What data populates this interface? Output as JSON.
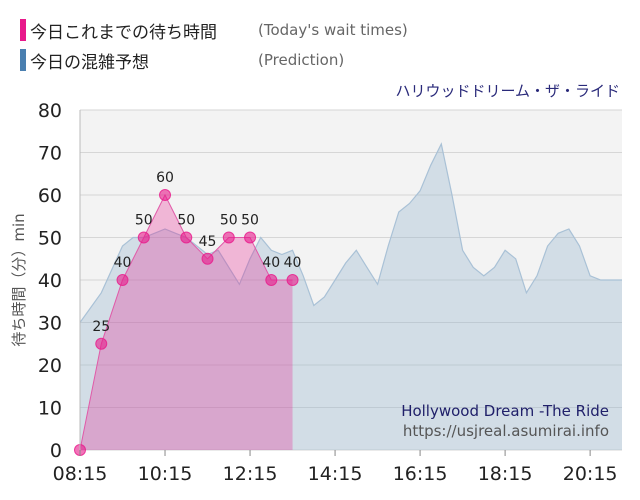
{
  "legend": [
    {
      "label": "今日これまでの待ち時間",
      "en": "(Today's wait times)",
      "color": "#e8198b"
    },
    {
      "label": "今日の混雑予想",
      "en": "(Prediction)",
      "color": "#4a7fb0"
    }
  ],
  "chart_data": {
    "type": "area",
    "subtitle": "ハリウッドドリーム・ザ・ライド",
    "ylabel": "待ち時間（分）min",
    "ylim": [
      0,
      80
    ],
    "yticks": [
      0,
      10,
      20,
      30,
      40,
      50,
      60,
      70,
      80
    ],
    "xlim": [
      "08:15",
      "21:00"
    ],
    "xticks": [
      "08:15",
      "10:15",
      "12:15",
      "14:15",
      "16:15",
      "18:15",
      "20:15"
    ],
    "grid": true,
    "colors": {
      "today": "#e8198b",
      "prediction": "#4a7fb0"
    },
    "series": [
      {
        "name": "今日の混雑予想",
        "x": [
          "08:15",
          "08:45",
          "09:15",
          "09:30",
          "09:45",
          "10:00",
          "10:15",
          "10:30",
          "10:45",
          "11:00",
          "11:15",
          "11:30",
          "11:45",
          "12:00",
          "12:15",
          "12:30",
          "12:45",
          "13:00",
          "13:15",
          "13:30",
          "13:45",
          "14:00",
          "14:15",
          "14:30",
          "14:45",
          "15:00",
          "15:15",
          "15:30",
          "15:45",
          "16:00",
          "16:15",
          "16:30",
          "16:45",
          "17:00",
          "17:15",
          "17:30",
          "17:45",
          "18:00",
          "18:15",
          "18:30",
          "18:45",
          "19:00",
          "19:15",
          "19:30",
          "19:45",
          "20:00",
          "20:15",
          "20:30",
          "20:45",
          "21:00"
        ],
        "values": [
          30,
          37,
          48,
          50,
          50,
          51,
          52,
          51,
          50,
          48,
          46,
          47,
          43,
          39,
          45,
          50,
          47,
          46,
          47,
          41,
          34,
          36,
          40,
          44,
          47,
          43,
          39,
          48,
          56,
          58,
          61,
          67,
          72,
          60,
          47,
          43,
          41,
          43,
          47,
          45,
          37,
          41,
          48,
          51,
          52,
          48,
          41,
          40,
          40,
          40
        ]
      },
      {
        "name": "今日これまでの待ち時間",
        "x": [
          "08:15",
          "08:45",
          "09:15",
          "09:45",
          "10:15",
          "10:45",
          "11:15",
          "11:45",
          "12:15",
          "12:45",
          "13:15"
        ],
        "values": [
          0,
          25,
          40,
          50,
          60,
          50,
          45,
          50,
          50,
          40,
          40
        ]
      }
    ]
  },
  "watermark": {
    "name": "Hollywood Dream -The Ride",
    "url": "https://usjreal.asumirai.info"
  }
}
